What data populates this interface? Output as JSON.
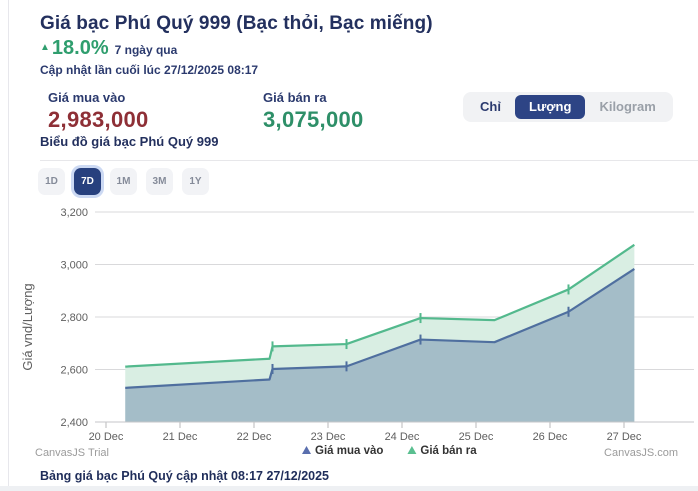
{
  "header": {
    "title": "Giá bạc Phú Quý 999 (Bạc thỏi, Bạc miếng)",
    "change_arrow": "▲",
    "change_percent": "18.0%",
    "change_period": "7 ngày qua",
    "last_updated": "Cập nhật lần cuối lúc 27/12/2025 08:17",
    "accent_green": "#2f9e6e"
  },
  "prices": {
    "buy": {
      "label": "Giá mua vào",
      "value": "2,983,000",
      "color": "#8e2f36"
    },
    "sell": {
      "label": "Giá bán ra",
      "value": "3,075,000",
      "color": "#2e8f68"
    }
  },
  "unit_toggle": {
    "options": [
      {
        "label": "Chỉ",
        "active": false
      },
      {
        "label": "Lượng",
        "active": true
      },
      {
        "label": "Kilogram",
        "active": false
      }
    ]
  },
  "chart_section": {
    "subtitle": "Biểu đồ giá bạc Phú Quý 999",
    "range_buttons": [
      {
        "label": "1D",
        "active": false
      },
      {
        "label": "7D",
        "active": true
      },
      {
        "label": "1M",
        "active": false
      },
      {
        "label": "3M",
        "active": false
      },
      {
        "label": "1Y",
        "active": false
      }
    ]
  },
  "chart_data": {
    "type": "area",
    "ylabel": "Giá vnd/Lượng",
    "ylim": [
      2400,
      3200
    ],
    "ytick_step": 200,
    "grid": true,
    "x_tick_labels": [
      "20 Dec",
      "21 Dec",
      "22 Dec",
      "23 Dec",
      "24 Dec",
      "25 Dec",
      "26 Dec",
      "27 Dec"
    ],
    "x_tick_values": [
      20,
      21,
      22,
      23,
      24,
      25,
      26,
      27
    ],
    "series": [
      {
        "name": "Giá bán ra",
        "line_color": "#53b98d",
        "fill_color": "#d9eee3",
        "points": [
          [
            20.26,
            2611
          ],
          [
            22.21,
            2641
          ],
          [
            22.25,
            2688
          ],
          [
            23.25,
            2697
          ],
          [
            24.25,
            2796
          ],
          [
            25.25,
            2788
          ],
          [
            26.25,
            2905
          ],
          [
            27.14,
            3075
          ]
        ]
      },
      {
        "name": "Giá mua vào",
        "line_color": "#4f6f9f",
        "fill_color": "rgba(79,111,159,0.38)",
        "points": [
          [
            20.26,
            2530
          ],
          [
            22.21,
            2562
          ],
          [
            22.25,
            2602
          ],
          [
            23.25,
            2612
          ],
          [
            24.25,
            2714
          ],
          [
            25.25,
            2704
          ],
          [
            26.25,
            2820
          ],
          [
            27.14,
            2983
          ]
        ]
      }
    ],
    "marker_x": [
      22.25,
      23.25,
      24.25,
      26.25
    ],
    "legend": [
      {
        "label": "Giá mua vào",
        "color": "#5a6fae"
      },
      {
        "label": "Giá bán ra",
        "color": "#5abf90"
      }
    ],
    "legend_position": "bottom-center",
    "watermark_left": "CanvasJS Trial",
    "watermark_right": "CanvasJS.com",
    "axis_text_color": "#5f5f5f",
    "grid_color": "#d9d9db"
  },
  "footer": {
    "table_caption": "Bảng giá bạc Phú Quý cập nhật 08:17 27/12/2025"
  }
}
